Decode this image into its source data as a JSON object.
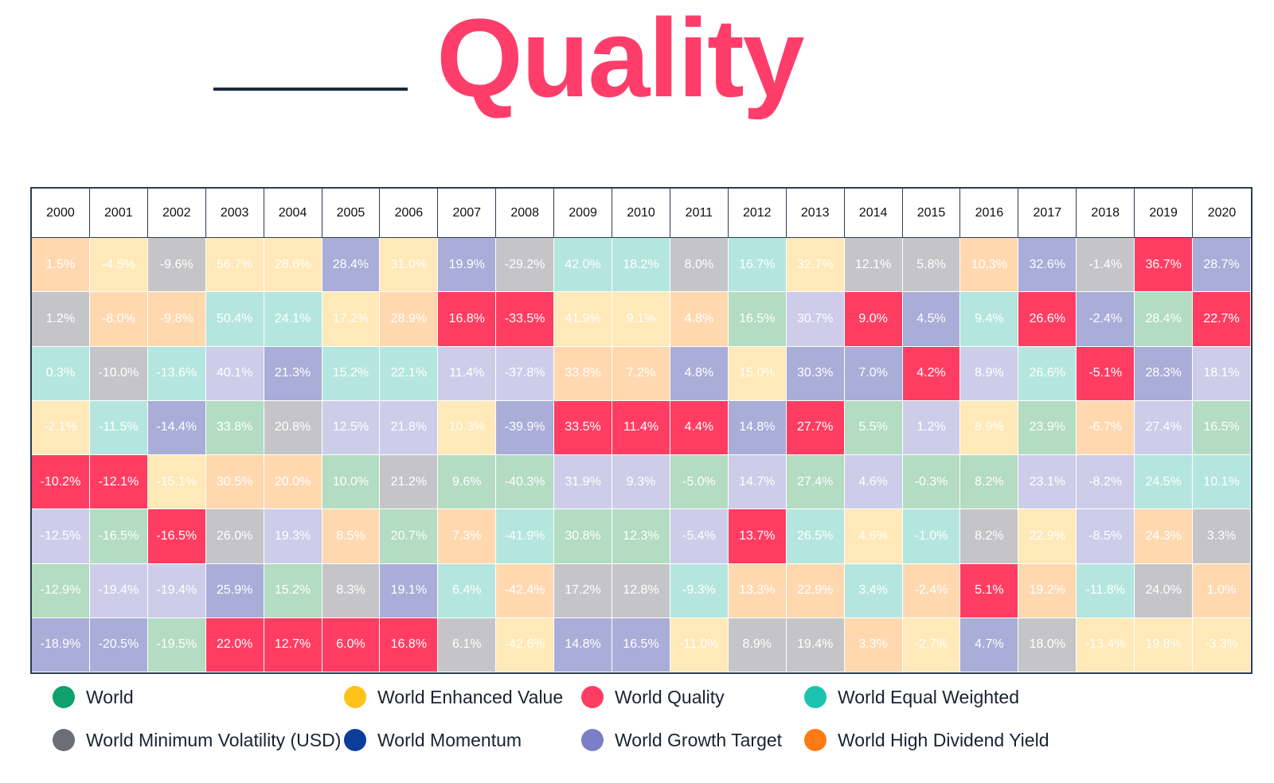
{
  "title": {
    "word": "Quality"
  },
  "colors": {
    "World": "#b3dcc2",
    "World Enhanced Value": "#ffe9b8",
    "World Quality": "#ff3d62",
    "World Equal Weighted": "#b4e6df",
    "World Minimum Volatility (USD)": "#c5c5c8",
    "World Momentum": "#a9add8",
    "World Growth Target": "#cdcdea",
    "World High Dividend Yield": "#ffd8b0"
  },
  "legend": [
    {
      "name": "World",
      "dot": "#10a06b"
    },
    {
      "name": "World Enhanced Value",
      "dot": "#ffc21a"
    },
    {
      "name": "World Quality",
      "dot": "#ff3d62"
    },
    {
      "name": "World Equal Weighted",
      "dot": "#1bc3b0"
    },
    {
      "name": "World Minimum Volatility (USD)",
      "dot": "#6b6e75"
    },
    {
      "name": "World Momentum",
      "dot": "#0b3e9b"
    },
    {
      "name": "World Growth Target",
      "dot": "#7b7fc7"
    },
    {
      "name": "World High Dividend Yield",
      "dot": "#ff7a12"
    }
  ],
  "chart_data": {
    "type": "table",
    "columns": [
      "2000",
      "2001",
      "2002",
      "2003",
      "2004",
      "2005",
      "2006",
      "2007",
      "2008",
      "2009",
      "2010",
      "2011",
      "2012",
      "2013",
      "2014",
      "2015",
      "2016",
      "2017",
      "2018",
      "2019",
      "2020"
    ],
    "cells": [
      [
        {
          "v": "1.5%",
          "s": "World High Dividend Yield"
        },
        {
          "v": "-4.5%",
          "s": "World Enhanced Value"
        },
        {
          "v": "-9.6%",
          "s": "World Minimum Volatility (USD)"
        },
        {
          "v": "56.7%",
          "s": "World Enhanced Value"
        },
        {
          "v": "28.6%",
          "s": "World Enhanced Value"
        },
        {
          "v": "28.4%",
          "s": "World Momentum"
        },
        {
          "v": "31.0%",
          "s": "World Enhanced Value"
        },
        {
          "v": "19.9%",
          "s": "World Momentum"
        },
        {
          "v": "-29.2%",
          "s": "World Minimum Volatility (USD)"
        },
        {
          "v": "42.0%",
          "s": "World Equal Weighted"
        },
        {
          "v": "18.2%",
          "s": "World Equal Weighted"
        },
        {
          "v": "8.0%",
          "s": "World Minimum Volatility (USD)"
        },
        {
          "v": "16.7%",
          "s": "World Equal Weighted"
        },
        {
          "v": "32.7%",
          "s": "World Enhanced Value"
        },
        {
          "v": "12.1%",
          "s": "World Minimum Volatility (USD)"
        },
        {
          "v": "5.8%",
          "s": "World Minimum Volatility (USD)"
        },
        {
          "v": "10.3%",
          "s": "World High Dividend Yield"
        },
        {
          "v": "32.6%",
          "s": "World Momentum"
        },
        {
          "v": "-1.4%",
          "s": "World Minimum Volatility (USD)"
        },
        {
          "v": "36.7%",
          "s": "World Quality"
        },
        {
          "v": "28.7%",
          "s": "World Momentum"
        }
      ],
      [
        {
          "v": "1.2%",
          "s": "World Minimum Volatility (USD)"
        },
        {
          "v": "-8.0%",
          "s": "World High Dividend Yield"
        },
        {
          "v": "-9.8%",
          "s": "World High Dividend Yield"
        },
        {
          "v": "50.4%",
          "s": "World Equal Weighted"
        },
        {
          "v": "24.1%",
          "s": "World Equal Weighted"
        },
        {
          "v": "17.2%",
          "s": "World Enhanced Value"
        },
        {
          "v": "28.9%",
          "s": "World High Dividend Yield"
        },
        {
          "v": "16.8%",
          "s": "World Quality"
        },
        {
          "v": "-33.5%",
          "s": "World Quality"
        },
        {
          "v": "41.9%",
          "s": "World Enhanced Value"
        },
        {
          "v": "9.1%",
          "s": "World Enhanced Value"
        },
        {
          "v": "4.8%",
          "s": "World High Dividend Yield"
        },
        {
          "v": "16.5%",
          "s": "World"
        },
        {
          "v": "30.7%",
          "s": "World Growth Target"
        },
        {
          "v": "9.0%",
          "s": "World Quality"
        },
        {
          "v": "4.5%",
          "s": "World Momentum"
        },
        {
          "v": "9.4%",
          "s": "World Equal Weighted"
        },
        {
          "v": "26.6%",
          "s": "World Quality"
        },
        {
          "v": "-2.4%",
          "s": "World Momentum"
        },
        {
          "v": "28.4%",
          "s": "World"
        },
        {
          "v": "22.7%",
          "s": "World Quality"
        }
      ],
      [
        {
          "v": "0.3%",
          "s": "World Equal Weighted"
        },
        {
          "v": "-10.0%",
          "s": "World Minimum Volatility (USD)"
        },
        {
          "v": "-13.6%",
          "s": "World Equal Weighted"
        },
        {
          "v": "40.1%",
          "s": "World Growth Target"
        },
        {
          "v": "21.3%",
          "s": "World Momentum"
        },
        {
          "v": "15.2%",
          "s": "World Equal Weighted"
        },
        {
          "v": "22.1%",
          "s": "World Equal Weighted"
        },
        {
          "v": "11.4%",
          "s": "World Growth Target"
        },
        {
          "v": "-37.8%",
          "s": "World Growth Target"
        },
        {
          "v": "33.8%",
          "s": "World High Dividend Yield"
        },
        {
          "v": "7.2%",
          "s": "World High Dividend Yield"
        },
        {
          "v": "4.8%",
          "s": "World Momentum"
        },
        {
          "v": "15.0%",
          "s": "World Enhanced Value"
        },
        {
          "v": "30.3%",
          "s": "World Momentum"
        },
        {
          "v": "7.0%",
          "s": "World Momentum"
        },
        {
          "v": "4.2%",
          "s": "World Quality"
        },
        {
          "v": "8.9%",
          "s": "World Growth Target"
        },
        {
          "v": "26.6%",
          "s": "World Equal Weighted"
        },
        {
          "v": "-5.1%",
          "s": "World Quality"
        },
        {
          "v": "28.3%",
          "s": "World Momentum"
        },
        {
          "v": "18.1%",
          "s": "World Growth Target"
        }
      ],
      [
        {
          "v": "-2.1%",
          "s": "World Enhanced Value"
        },
        {
          "v": "-11.5%",
          "s": "World Equal Weighted"
        },
        {
          "v": "-14.4%",
          "s": "World Momentum"
        },
        {
          "v": "33.8%",
          "s": "World"
        },
        {
          "v": "20.8%",
          "s": "World Minimum Volatility (USD)"
        },
        {
          "v": "12.5%",
          "s": "World Growth Target"
        },
        {
          "v": "21.8%",
          "s": "World Growth Target"
        },
        {
          "v": "10.3%",
          "s": "World Enhanced Value"
        },
        {
          "v": "-39.9%",
          "s": "World Momentum"
        },
        {
          "v": "33.5%",
          "s": "World Quality"
        },
        {
          "v": "11.4%",
          "s": "World Quality"
        },
        {
          "v": "4.4%",
          "s": "World Quality"
        },
        {
          "v": "14.8%",
          "s": "World Momentum"
        },
        {
          "v": "27.7%",
          "s": "World Quality"
        },
        {
          "v": "5.5%",
          "s": "World"
        },
        {
          "v": "1.2%",
          "s": "World Growth Target"
        },
        {
          "v": "8.9%",
          "s": "World Enhanced Value"
        },
        {
          "v": "23.9%",
          "s": "World"
        },
        {
          "v": "-6.7%",
          "s": "World High Dividend Yield"
        },
        {
          "v": "27.4%",
          "s": "World Growth Target"
        },
        {
          "v": "16.5%",
          "s": "World"
        }
      ],
      [
        {
          "v": "-10.2%",
          "s": "World Quality"
        },
        {
          "v": "-12.1%",
          "s": "World Quality"
        },
        {
          "v": "-15.1%",
          "s": "World Enhanced Value"
        },
        {
          "v": "30.5%",
          "s": "World High Dividend Yield"
        },
        {
          "v": "20.0%",
          "s": "World High Dividend Yield"
        },
        {
          "v": "10.0%",
          "s": "World"
        },
        {
          "v": "21.2%",
          "s": "World Minimum Volatility (USD)"
        },
        {
          "v": "9.6%",
          "s": "World"
        },
        {
          "v": "-40.3%",
          "s": "World"
        },
        {
          "v": "31.9%",
          "s": "World Growth Target"
        },
        {
          "v": "9.3%",
          "s": "World Growth Target"
        },
        {
          "v": "-5.0%",
          "s": "World"
        },
        {
          "v": "14.7%",
          "s": "World Growth Target"
        },
        {
          "v": "27.4%",
          "s": "World"
        },
        {
          "v": "4.6%",
          "s": "World Growth Target"
        },
        {
          "v": "-0.3%",
          "s": "World"
        },
        {
          "v": "8.2%",
          "s": "World"
        },
        {
          "v": "23.1%",
          "s": "World Growth Target"
        },
        {
          "v": "-8.2%",
          "s": "World Growth Target"
        },
        {
          "v": "24.5%",
          "s": "World Equal Weighted"
        },
        {
          "v": "10.1%",
          "s": "World Equal Weighted"
        }
      ],
      [
        {
          "v": "-12.5%",
          "s": "World Growth Target"
        },
        {
          "v": "-16.5%",
          "s": "World"
        },
        {
          "v": "-16.5%",
          "s": "World Quality"
        },
        {
          "v": "26.0%",
          "s": "World Minimum Volatility (USD)"
        },
        {
          "v": "19.3%",
          "s": "World Growth Target"
        },
        {
          "v": "8.5%",
          "s": "World High Dividend Yield"
        },
        {
          "v": "20.7%",
          "s": "World"
        },
        {
          "v": "7.3%",
          "s": "World High Dividend Yield"
        },
        {
          "v": "-41.9%",
          "s": "World Equal Weighted"
        },
        {
          "v": "30.8%",
          "s": "World"
        },
        {
          "v": "12.3%",
          "s": "World"
        },
        {
          "v": "-5.4%",
          "s": "World Growth Target"
        },
        {
          "v": "13.7%",
          "s": "World Quality"
        },
        {
          "v": "26.5%",
          "s": "World Equal Weighted"
        },
        {
          "v": "4.6%",
          "s": "World Enhanced Value"
        },
        {
          "v": "-1.0%",
          "s": "World Equal Weighted"
        },
        {
          "v": "8.2%",
          "s": "World Minimum Volatility (USD)"
        },
        {
          "v": "22.9%",
          "s": "World Enhanced Value"
        },
        {
          "v": "-8.5%",
          "s": "World Growth Target"
        },
        {
          "v": "24.3%",
          "s": "World High Dividend Yield"
        },
        {
          "v": "3.3%",
          "s": "World Minimum Volatility (USD)"
        }
      ],
      [
        {
          "v": "-12.9%",
          "s": "World"
        },
        {
          "v": "-19.4%",
          "s": "World Growth Target"
        },
        {
          "v": "-19.4%",
          "s": "World Growth Target"
        },
        {
          "v": "25.9%",
          "s": "World Momentum"
        },
        {
          "v": "15.2%",
          "s": "World"
        },
        {
          "v": "8.3%",
          "s": "World Minimum Volatility (USD)"
        },
        {
          "v": "19.1%",
          "s": "World Momentum"
        },
        {
          "v": "6.4%",
          "s": "World Equal Weighted"
        },
        {
          "v": "-42.4%",
          "s": "World High Dividend Yield"
        },
        {
          "v": "17.2%",
          "s": "World Minimum Volatility (USD)"
        },
        {
          "v": "12.8%",
          "s": "World Minimum Volatility (USD)"
        },
        {
          "v": "-9.3%",
          "s": "World Equal Weighted"
        },
        {
          "v": "13.3%",
          "s": "World High Dividend Yield"
        },
        {
          "v": "22.9%",
          "s": "World High Dividend Yield"
        },
        {
          "v": "3.4%",
          "s": "World Equal Weighted"
        },
        {
          "v": "-2.4%",
          "s": "World High Dividend Yield"
        },
        {
          "v": "5.1%",
          "s": "World Quality"
        },
        {
          "v": "19.2%",
          "s": "World High Dividend Yield"
        },
        {
          "v": "-11.8%",
          "s": "World Equal Weighted"
        },
        {
          "v": "24.0%",
          "s": "World Minimum Volatility (USD)"
        },
        {
          "v": "1.0%",
          "s": "World High Dividend Yield"
        }
      ],
      [
        {
          "v": "-18.9%",
          "s": "World Momentum"
        },
        {
          "v": "-20.5%",
          "s": "World Momentum"
        },
        {
          "v": "-19.5%",
          "s": "World"
        },
        {
          "v": "22.0%",
          "s": "World Quality"
        },
        {
          "v": "12.7%",
          "s": "World Quality"
        },
        {
          "v": "6.0%",
          "s": "World Quality"
        },
        {
          "v": "16.8%",
          "s": "World Quality"
        },
        {
          "v": "6.1%",
          "s": "World Minimum Volatility (USD)"
        },
        {
          "v": "-42.6%",
          "s": "World Enhanced Value"
        },
        {
          "v": "14.8%",
          "s": "World Momentum"
        },
        {
          "v": "16.5%",
          "s": "World Momentum"
        },
        {
          "v": "-11.0%",
          "s": "World Enhanced Value"
        },
        {
          "v": "8.9%",
          "s": "World Minimum Volatility (USD)"
        },
        {
          "v": "19.4%",
          "s": "World Minimum Volatility (USD)"
        },
        {
          "v": "3.3%",
          "s": "World High Dividend Yield"
        },
        {
          "v": "-2.7%",
          "s": "World Enhanced Value"
        },
        {
          "v": "4.7%",
          "s": "World Momentum"
        },
        {
          "v": "18.0%",
          "s": "World Minimum Volatility (USD)"
        },
        {
          "v": "-13.4%",
          "s": "World Enhanced Value"
        },
        {
          "v": "19.8%",
          "s": "World Enhanced Value"
        },
        {
          "v": "-3.3%",
          "s": "World Enhanced Value"
        }
      ]
    ]
  }
}
